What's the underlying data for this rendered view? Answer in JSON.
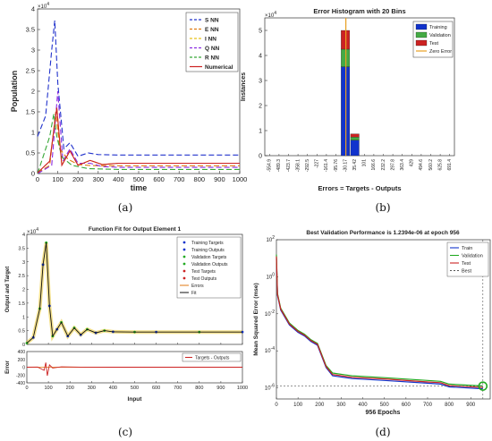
{
  "captions": {
    "a": "(a)",
    "b": "(b)",
    "c": "(c)",
    "d": "(d)"
  },
  "colors": {
    "blue": "#2233cc",
    "orange": "#e07a10",
    "yellow": "#e8c21a",
    "purple": "#8a2be2",
    "green": "#38a838",
    "red": "#cc2222",
    "black": "#111111"
  },
  "chart_data": [
    {
      "id": "a",
      "type": "line",
      "title": "",
      "xlabel": "time",
      "ylabel": "Population",
      "y_multiplier": "× 10^4",
      "xlim": [
        0,
        1000
      ],
      "ylim": [
        0,
        4
      ],
      "xticks": [
        0,
        100,
        200,
        300,
        400,
        500,
        600,
        700,
        800,
        900,
        1000
      ],
      "yticks": [
        0,
        0.5,
        1,
        1.5,
        2,
        2.5,
        3,
        3.5,
        4
      ],
      "ytick_labels": [
        "0",
        "0.5",
        "1",
        "1.5",
        "2",
        "2.5",
        "3",
        "3.5",
        "4"
      ],
      "legend": {
        "position": "top-right"
      },
      "series": [
        {
          "name": "S NN",
          "color": "#2233cc",
          "dash": "6,3",
          "x": [
            0,
            40,
            70,
            85,
            100,
            130,
            160,
            200,
            250,
            300,
            400,
            500,
            700,
            1000
          ],
          "y": [
            0.9,
            1.4,
            3.0,
            3.72,
            2.2,
            0.6,
            0.75,
            0.42,
            0.5,
            0.46,
            0.45,
            0.45,
            0.45,
            0.45
          ]
        },
        {
          "name": "E NN",
          "color": "#e07a10",
          "dash": "6,3",
          "x": [
            0,
            60,
            90,
            110,
            150,
            200,
            250,
            300,
            400,
            600,
            1000
          ],
          "y": [
            0.02,
            0.2,
            1.5,
            0.6,
            0.35,
            0.22,
            0.2,
            0.19,
            0.19,
            0.19,
            0.19
          ]
        },
        {
          "name": "I NN",
          "color": "#e8c21a",
          "dash": "6,3",
          "x": [
            0,
            60,
            95,
            120,
            160,
            200,
            260,
            320,
            400,
            600,
            1000
          ],
          "y": [
            0.02,
            0.3,
            1.6,
            0.2,
            0.55,
            0.2,
            0.32,
            0.22,
            0.25,
            0.25,
            0.25
          ]
        },
        {
          "name": "Q NN",
          "color": "#8a2be2",
          "dash": "6,3",
          "x": [
            0,
            70,
            100,
            125,
            160,
            200,
            260,
            320,
            400,
            600,
            1000
          ],
          "y": [
            0.0,
            0.2,
            2.0,
            0.3,
            0.6,
            0.25,
            0.25,
            0.17,
            0.15,
            0.15,
            0.15
          ]
        },
        {
          "name": "R NN",
          "color": "#38a838",
          "dash": "6,3",
          "x": [
            0,
            60,
            80,
            95,
            120,
            170,
            250,
            400,
            1000
          ],
          "y": [
            0.0,
            0.9,
            1.45,
            0.9,
            0.4,
            0.2,
            0.12,
            0.1,
            0.1
          ]
        },
        {
          "name": "Numerical",
          "color": "#cc2222",
          "dash": "",
          "x": [
            0,
            60,
            95,
            120,
            160,
            200,
            260,
            320,
            400,
            600,
            1000
          ],
          "y": [
            0.02,
            0.3,
            1.6,
            0.2,
            0.55,
            0.2,
            0.32,
            0.22,
            0.25,
            0.25,
            0.25
          ]
        }
      ]
    },
    {
      "id": "b",
      "type": "bar",
      "title": "Error Histogram with 20 Bins",
      "xlabel": "Errors = Targets - Outputs",
      "ylabel": "Instances",
      "y_multiplier": "× 10^4",
      "ylim": [
        0,
        5.5
      ],
      "yticks": [
        0,
        1,
        2,
        3,
        4,
        5
      ],
      "categories": [
        "-554.9",
        "-489.3",
        "-423.7",
        "-358.1",
        "-292.5",
        "-227",
        "-161.4",
        "-95.76",
        "-30.17",
        "35.42",
        "101",
        "166.6",
        "232.2",
        "297.8",
        "363.4",
        "429",
        "494.6",
        "560.2",
        "625.8",
        "691.4"
      ],
      "stacked": true,
      "series": [
        {
          "name": "Training",
          "color": "#1133cc",
          "values": [
            0,
            0,
            0,
            0,
            0,
            0,
            0,
            0,
            3.55,
            0.62,
            0,
            0,
            0,
            0,
            0,
            0,
            0,
            0,
            0,
            0
          ]
        },
        {
          "name": "Validation",
          "color": "#44aa44",
          "values": [
            0,
            0,
            0,
            0,
            0,
            0,
            0,
            0,
            0.7,
            0.12,
            0,
            0,
            0,
            0,
            0,
            0,
            0,
            0,
            0,
            0
          ]
        },
        {
          "name": "Test",
          "color": "#cc2222",
          "values": [
            0,
            0,
            0,
            0,
            0,
            0,
            0,
            0,
            0.75,
            0.13,
            0,
            0,
            0,
            0,
            0,
            0,
            0,
            0,
            0,
            0
          ]
        }
      ],
      "zero_error": {
        "name": "Zero Error",
        "color": "#e8a020"
      },
      "legend": {
        "position": "top-right"
      }
    },
    {
      "id": "c",
      "type": "scatter",
      "title": "Function Fit for Output Element 1",
      "xlabel": "Input",
      "ylabel": "Output and Target",
      "ylabel_bottom": "Error",
      "y_multiplier": "× 10^4",
      "xlim": [
        0,
        1000
      ],
      "ylim": [
        0,
        4
      ],
      "err_ylim": [
        -400,
        400
      ],
      "xticks": [
        0,
        100,
        200,
        300,
        400,
        500,
        600,
        700,
        800,
        900,
        1000
      ],
      "yticks": [
        0,
        0.5,
        1,
        1.5,
        2,
        2.5,
        3,
        3.5,
        4
      ],
      "err_yticks": [
        -400,
        -200,
        0,
        200,
        400
      ],
      "legend_top": [
        "Training Targets",
        "Training Outputs",
        "Validation Targets",
        "Validation Outputs",
        "Test Targets",
        "Test Outputs",
        "Errors",
        "Fit"
      ],
      "legend_bottom": [
        "Targets - Outputs"
      ],
      "x": [
        0,
        30,
        60,
        75,
        90,
        105,
        120,
        140,
        160,
        190,
        220,
        250,
        280,
        320,
        360,
        400,
        500,
        600,
        800,
        1000
      ],
      "y": [
        0.05,
        0.25,
        1.3,
        2.9,
        3.7,
        1.4,
        0.3,
        0.55,
        0.8,
        0.3,
        0.6,
        0.35,
        0.55,
        0.42,
        0.5,
        0.46,
        0.45,
        0.45,
        0.45,
        0.45
      ],
      "error_x": [
        0,
        50,
        80,
        88,
        95,
        105,
        120,
        160,
        250,
        400,
        1000
      ],
      "error_y": [
        0,
        5,
        -80,
        120,
        -220,
        60,
        -20,
        8,
        3,
        0,
        0
      ]
    },
    {
      "id": "d",
      "type": "line",
      "title": "Best Validation Performance is 1.2394e-06 at epoch 956",
      "xlabel": "956 Epochs",
      "ylabel": "Mean Squared Error  (mse)",
      "yscale": "log",
      "xlim": [
        0,
        956
      ],
      "ylim_exp": [
        -6.6,
        2
      ],
      "xticks": [
        0,
        100,
        200,
        300,
        400,
        500,
        600,
        700,
        800,
        900
      ],
      "yticks_exp": [
        -6,
        -4,
        -2,
        0,
        2
      ],
      "ytick_labels": [
        "10^-6",
        "10^-4",
        "10^-2",
        "10^0",
        "10^2"
      ],
      "legend": {
        "position": "top-right"
      },
      "best_point": {
        "epoch": 956,
        "exp": -5.907
      },
      "series": [
        {
          "name": "Train",
          "color": "#1133cc",
          "x": [
            0,
            5,
            20,
            60,
            100,
            130,
            160,
            190,
            230,
            260,
            350,
            500,
            700,
            760,
            800,
            956
          ],
          "y_exp": [
            1.0,
            -1.0,
            -1.8,
            -2.6,
            -3.0,
            -3.2,
            -3.5,
            -3.7,
            -4.9,
            -5.35,
            -5.5,
            -5.6,
            -5.75,
            -5.8,
            -5.95,
            -6.05
          ]
        },
        {
          "name": "Validation",
          "color": "#22aa22",
          "x": [
            0,
            5,
            20,
            60,
            100,
            130,
            160,
            190,
            230,
            260,
            350,
            500,
            700,
            760,
            800,
            956
          ],
          "y_exp": [
            1.2,
            -0.9,
            -1.7,
            -2.5,
            -2.9,
            -3.1,
            -3.4,
            -3.6,
            -4.8,
            -5.2,
            -5.35,
            -5.45,
            -5.6,
            -5.65,
            -5.8,
            -5.9
          ]
        },
        {
          "name": "Test",
          "color": "#cc2222",
          "x": [
            0,
            5,
            20,
            60,
            100,
            130,
            160,
            190,
            230,
            260,
            350,
            500,
            700,
            760,
            800,
            956
          ],
          "y_exp": [
            1.1,
            -0.95,
            -1.75,
            -2.55,
            -2.95,
            -3.15,
            -3.45,
            -3.65,
            -4.85,
            -5.28,
            -5.43,
            -5.52,
            -5.68,
            -5.72,
            -5.88,
            -5.98
          ]
        },
        {
          "name": "Best",
          "color": "#555555",
          "dash": "2,2",
          "x": [
            0,
            956
          ],
          "y_exp": [
            -5.907,
            -5.907
          ]
        }
      ]
    }
  ]
}
